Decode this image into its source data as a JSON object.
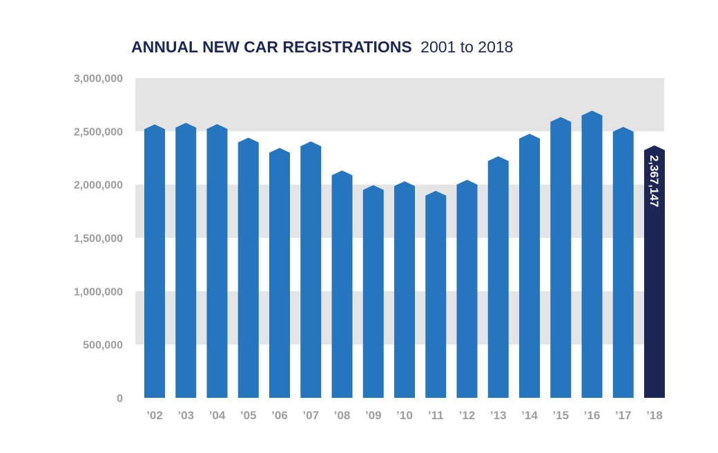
{
  "chart_data": {
    "type": "bar",
    "title": "ANNUAL NEW CAR REGISTRATIONS",
    "subtitle": "2001 to 2018",
    "xlabel": "",
    "ylabel": "",
    "categories": [
      "’02",
      "’03",
      "’04",
      "’05",
      "’06",
      "’07",
      "’08",
      "’09",
      "’10",
      "’11",
      "’12",
      "’13",
      "’14",
      "’15",
      "’16",
      "’17",
      "’18"
    ],
    "values": [
      2564000,
      2579000,
      2567000,
      2440000,
      2344000,
      2404000,
      2132000,
      1995000,
      2031000,
      1941000,
      2045000,
      2265000,
      2476000,
      2633000,
      2693000,
      2541000,
      2367147
    ],
    "ylim": [
      0,
      3000000
    ],
    "yticks": [
      0,
      500000,
      1000000,
      1500000,
      2000000,
      2500000,
      3000000
    ],
    "ytick_labels": [
      "0",
      "500,000",
      "1,000,000",
      "1,500,000",
      "2,000,000",
      "2,500,000",
      "3,000,000"
    ],
    "data_labels": [
      {
        "index": 16,
        "text": "2,367,147"
      }
    ],
    "band_color": "#e5e4e5",
    "grid": false,
    "colors": {
      "bar": "#2576bf",
      "highlight": "#1c2756",
      "title": "#1c2756",
      "axis_text": "#9d9d9d",
      "data_label": "#ffffff"
    },
    "highlight_index": 16
  }
}
